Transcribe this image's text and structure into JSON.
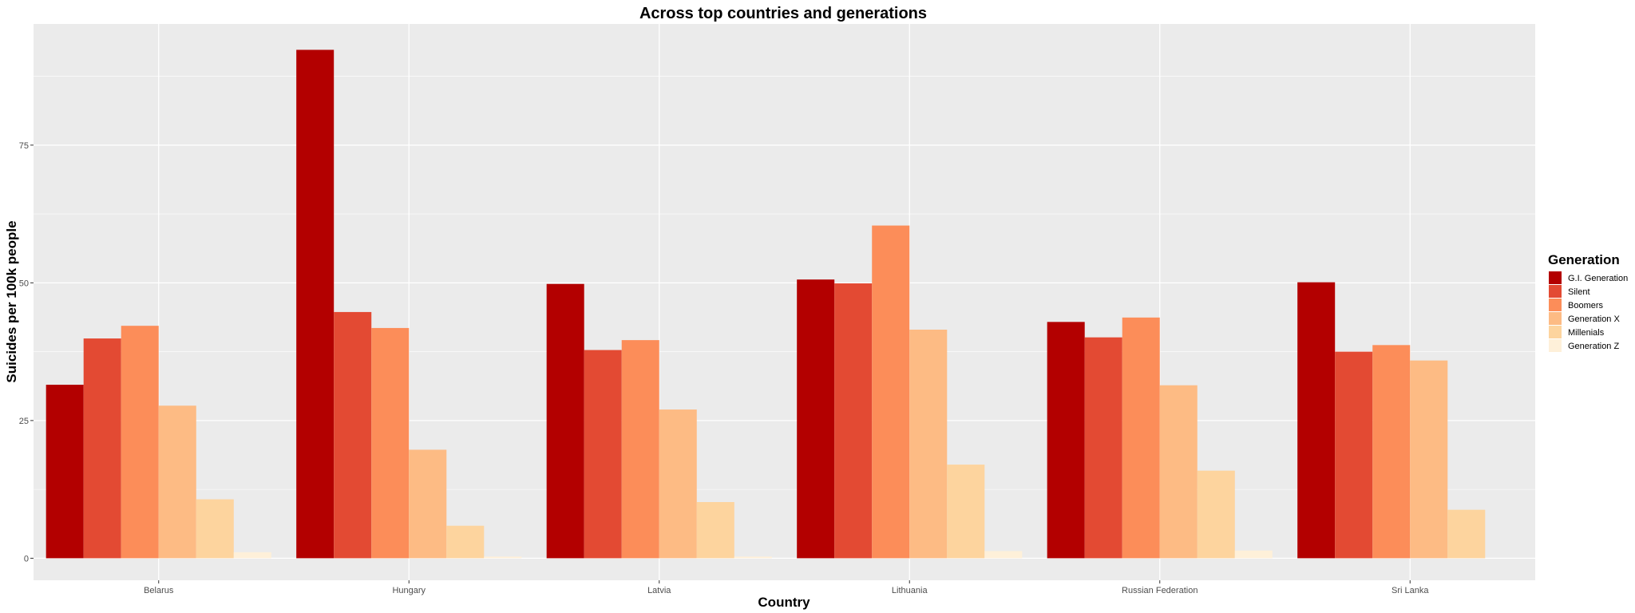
{
  "chart_data": {
    "type": "bar",
    "title": "Across top countries and generations",
    "xlabel": "Country",
    "ylabel": "Suicides per 100k people",
    "categories": [
      "Belarus",
      "Hungary",
      "Latvia",
      "Lithuania",
      "Russian Federation",
      "Sri Lanka"
    ],
    "ylim": [
      -4,
      97
    ],
    "yticks": [
      0,
      25,
      50,
      75
    ],
    "grid": true,
    "legend_title": "Generation",
    "legend_position": "right",
    "series": [
      {
        "name": "G.I. Generation",
        "color": "#b30000",
        "values": [
          31.5,
          92.3,
          49.8,
          50.6,
          42.9,
          50.1
        ]
      },
      {
        "name": "Silent",
        "color": "#e34a33",
        "values": [
          39.9,
          44.7,
          37.8,
          49.9,
          40.1,
          37.5
        ]
      },
      {
        "name": "Boomers",
        "color": "#fc8d59",
        "values": [
          42.2,
          41.8,
          39.6,
          60.4,
          43.7,
          38.7
        ]
      },
      {
        "name": "Generation X",
        "color": "#fdbb84",
        "values": [
          27.7,
          19.7,
          27.0,
          41.5,
          31.4,
          35.9
        ]
      },
      {
        "name": "Millenials",
        "color": "#fdd49e",
        "values": [
          10.7,
          5.9,
          10.2,
          17.0,
          15.9,
          8.8
        ]
      },
      {
        "name": "Generation Z",
        "color": "#fef0d9",
        "values": [
          1.1,
          0.3,
          0.3,
          1.3,
          1.4,
          null
        ]
      }
    ]
  }
}
